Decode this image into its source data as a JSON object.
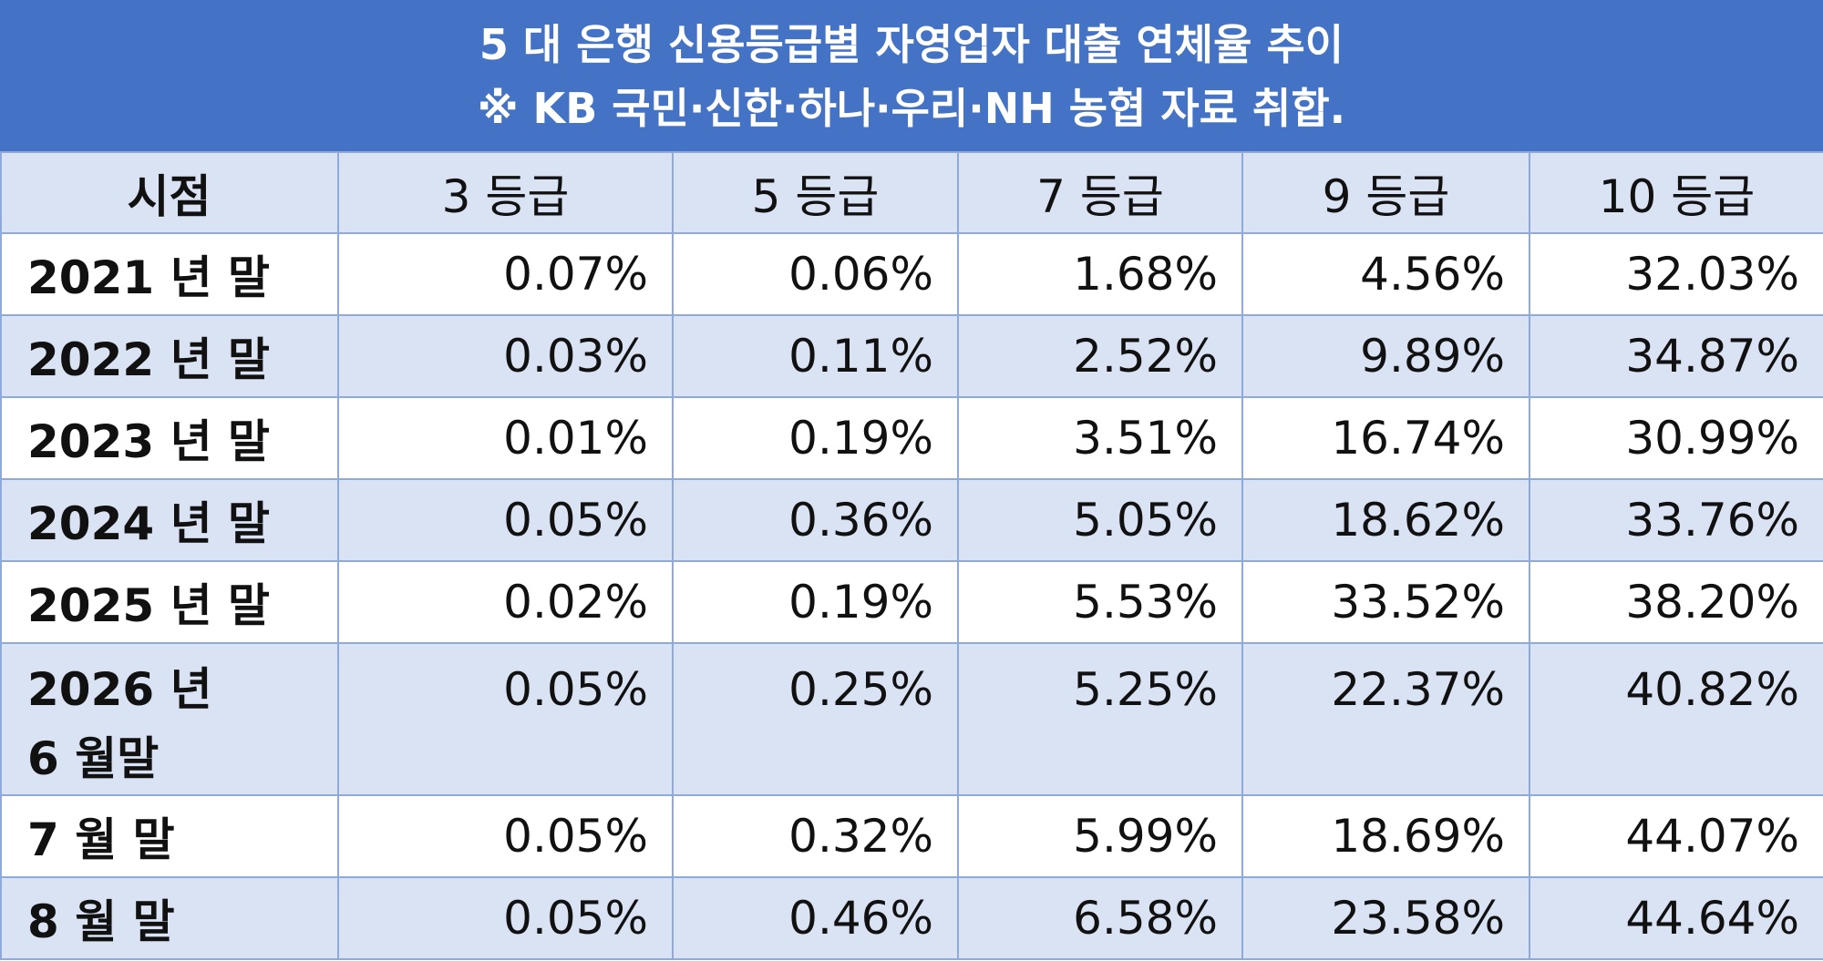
{
  "title": [
    "5 대 은행 신용등급별 자영업자 대출 연체율 추이",
    "※ KB 국민·신한·하나·우리·NH 농협 자료 취합."
  ],
  "table": {
    "header": [
      "시점",
      "3 등급",
      "5 등급",
      "7 등급",
      "9 등급",
      "10 등급"
    ],
    "rows": [
      [
        "2021 년  말",
        "0.07%",
        "0.06%",
        "1.68%",
        "4.56%",
        "32.03%"
      ],
      [
        "2022 년  말",
        "0.03%",
        "0.11%",
        "2.52%",
        "9.89%",
        "34.87%"
      ],
      [
        "2023 년  말",
        "0.01%",
        "0.19%",
        "3.51%",
        "16.74%",
        "30.99%"
      ],
      [
        "2024 년  말",
        "0.05%",
        "0.36%",
        "5.05%",
        "18.62%",
        "33.76%"
      ],
      [
        "2025 년  말",
        "0.02%",
        "0.19%",
        "5.53%",
        "33.52%",
        "38.20%"
      ],
      [
        "2026 년\n6 월말",
        "0.05%",
        "0.25%",
        "5.25%",
        "22.37%",
        "40.82%"
      ],
      [
        "7 월  말",
        "0.05%",
        "0.32%",
        "5.99%",
        "18.69%",
        "44.07%"
      ],
      [
        "8 월  말",
        "0.05%",
        "0.46%",
        "6.58%",
        "23.58%",
        "44.64%"
      ]
    ]
  }
}
